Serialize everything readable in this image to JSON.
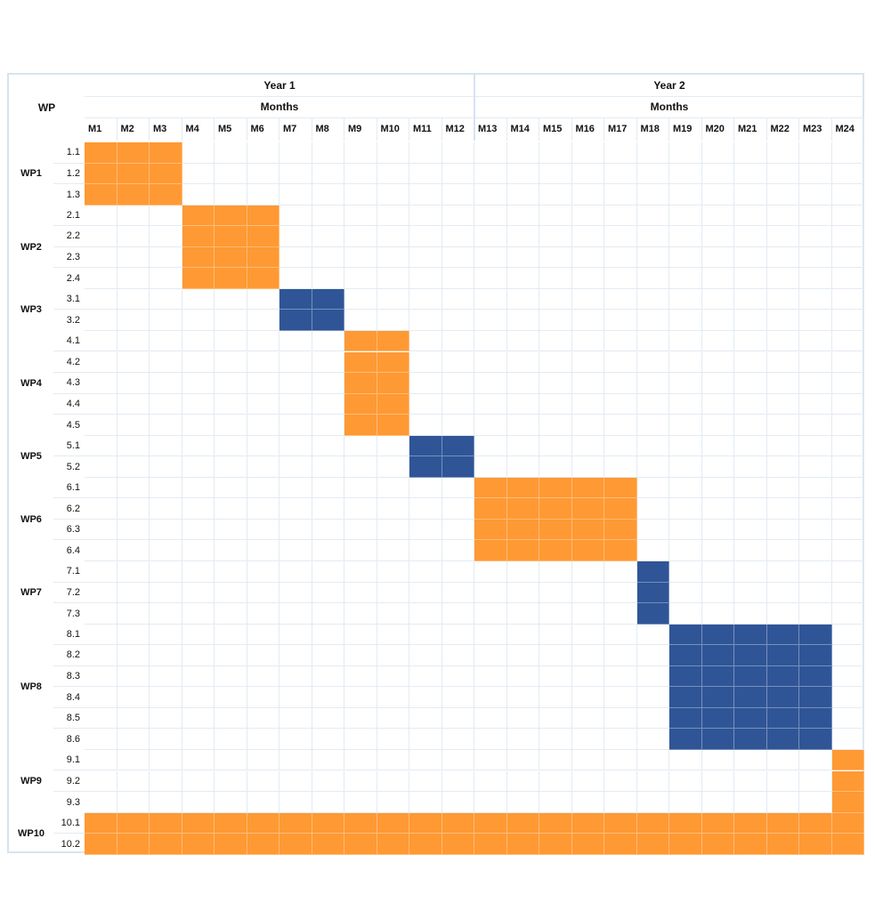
{
  "chart_data": {
    "type": "gantt",
    "header": {
      "wp_label": "WP",
      "years": [
        "Year 1",
        "Year 2"
      ],
      "months_label": "Months",
      "months": [
        "M1",
        "M2",
        "M3",
        "M4",
        "M5",
        "M6",
        "M7",
        "M8",
        "M9",
        "M10",
        "M11",
        "M12",
        "M13",
        "M14",
        "M15",
        "M16",
        "M17",
        "M18",
        "M19",
        "M20",
        "M21",
        "M22",
        "M23",
        "M24"
      ]
    },
    "colors": {
      "orange": "#FF9933",
      "blue": "#2F5597"
    },
    "work_packages": [
      {
        "name": "WP1",
        "tasks": [
          "1.1",
          "1.2",
          "1.3"
        ],
        "start": 1,
        "end": 3,
        "color": "orange"
      },
      {
        "name": "WP2",
        "tasks": [
          "2.1",
          "2.2",
          "2.3",
          "2.4"
        ],
        "start": 4,
        "end": 6,
        "color": "orange"
      },
      {
        "name": "WP3",
        "tasks": [
          "3.1",
          "3.2"
        ],
        "start": 7,
        "end": 8,
        "color": "blue"
      },
      {
        "name": "WP4",
        "tasks": [
          "4.1",
          "4.2",
          "4.3",
          "4.4",
          "4.5"
        ],
        "start": 9,
        "end": 10,
        "color": "orange"
      },
      {
        "name": "WP5",
        "tasks": [
          "5.1",
          "5.2"
        ],
        "start": 11,
        "end": 12,
        "color": "blue"
      },
      {
        "name": "WP6",
        "tasks": [
          "6.1",
          "6.2",
          "6.3",
          "6.4"
        ],
        "start": 13,
        "end": 17,
        "color": "orange"
      },
      {
        "name": "WP7",
        "tasks": [
          "7.1",
          "7.2",
          "7.3"
        ],
        "start": 18,
        "end": 18,
        "color": "blue"
      },
      {
        "name": "WP8",
        "tasks": [
          "8.1",
          "8.2",
          "8.3",
          "8.4",
          "8.5",
          "8.6"
        ],
        "start": 19,
        "end": 23,
        "color": "blue"
      },
      {
        "name": "WP9",
        "tasks": [
          "9.1",
          "9.2",
          "9.3"
        ],
        "start": 24,
        "end": 24,
        "color": "orange"
      },
      {
        "name": "WP10",
        "tasks": [
          "10.1",
          "10.2"
        ],
        "start": 1,
        "end": 24,
        "color": "orange"
      }
    ]
  }
}
